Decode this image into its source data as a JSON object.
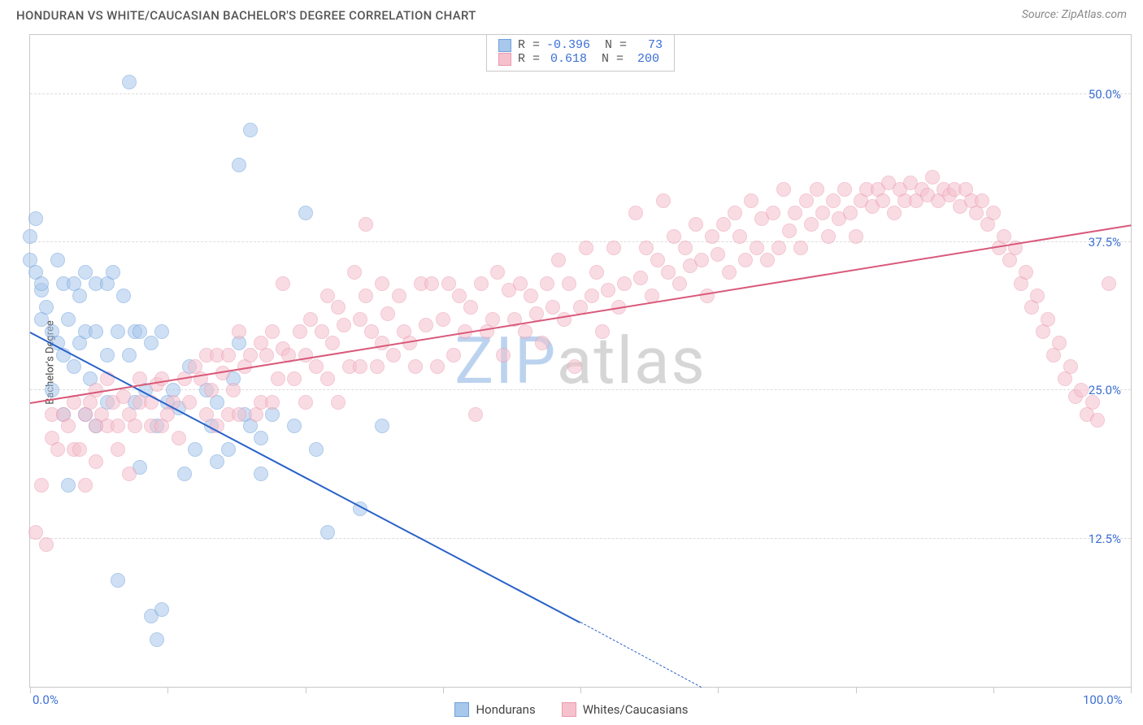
{
  "title": "HONDURAN VS WHITE/CAUCASIAN BACHELOR'S DEGREE CORRELATION CHART",
  "source": "Source: ZipAtlas.com",
  "watermark": {
    "text_a": "ZIP",
    "text_b": "atlas",
    "color_a": "#bcd3ef",
    "color_b": "#d6d6d6"
  },
  "chart": {
    "type": "scatter-with-trend",
    "ylabel": "Bachelor's Degree",
    "background_color": "#ffffff",
    "grid_color": "#dcdcdc",
    "border_color": "#c8c8c8",
    "tick_label_color": "#3b6fd6",
    "xlim": [
      0,
      100
    ],
    "ylim": [
      0,
      55
    ],
    "x_axis": {
      "tick_positions": [
        0,
        12.5,
        25,
        37.5,
        50,
        62.5,
        75,
        87.5,
        100
      ],
      "visible_labels": {
        "0": "0.0%",
        "100": "100.0%"
      }
    },
    "y_axis": {
      "gridlines": [
        12.5,
        25,
        37.5,
        50
      ],
      "labels": {
        "12.5": "12.5%",
        "25": "25.0%",
        "37.5": "37.5%",
        "50": "50.0%"
      }
    },
    "marker_radius": 9,
    "marker_opacity": 0.55,
    "series": [
      {
        "key": "hondurans",
        "label": "Hondurans",
        "marker_fill": "#a8c7ec",
        "marker_stroke": "#6ea0dd",
        "trend_color": "#2a62c9",
        "stats": {
          "R": "-0.396",
          "N": "73"
        },
        "trend": {
          "x1": 0,
          "y1": 30,
          "x2": 50,
          "y2": 5.5
        },
        "trend_dash": {
          "x1": 50,
          "y1": 5.5,
          "x2": 61,
          "y2": 0
        },
        "points": [
          [
            0,
            38
          ],
          [
            0,
            36
          ],
          [
            0.5,
            35
          ],
          [
            1,
            33.5
          ],
          [
            1,
            34
          ],
          [
            0.5,
            39.5
          ],
          [
            1,
            31
          ],
          [
            1.5,
            32
          ],
          [
            2,
            25
          ],
          [
            2,
            30
          ],
          [
            2.5,
            36
          ],
          [
            2.5,
            29
          ],
          [
            3,
            34
          ],
          [
            3,
            28
          ],
          [
            3,
            23
          ],
          [
            3.5,
            31
          ],
          [
            3.5,
            17
          ],
          [
            4,
            34
          ],
          [
            4,
            27
          ],
          [
            4.5,
            29
          ],
          [
            4.5,
            33
          ],
          [
            5,
            30
          ],
          [
            5,
            23
          ],
          [
            5,
            35
          ],
          [
            5.5,
            26
          ],
          [
            6,
            30
          ],
          [
            6,
            34
          ],
          [
            6,
            22
          ],
          [
            7,
            34
          ],
          [
            7,
            28
          ],
          [
            7,
            24
          ],
          [
            7.5,
            35
          ],
          [
            8,
            9
          ],
          [
            8,
            30
          ],
          [
            8.5,
            33
          ],
          [
            9,
            51
          ],
          [
            9,
            28
          ],
          [
            9.5,
            24
          ],
          [
            9.5,
            30
          ],
          [
            10,
            18.5
          ],
          [
            10,
            30
          ],
          [
            10.5,
            25
          ],
          [
            11,
            29
          ],
          [
            11,
            6
          ],
          [
            11.5,
            22
          ],
          [
            12,
            6.5
          ],
          [
            12,
            30
          ],
          [
            12.5,
            24
          ],
          [
            13,
            25
          ],
          [
            13.5,
            23.5
          ],
          [
            14,
            18
          ],
          [
            14.5,
            27
          ],
          [
            15,
            20
          ],
          [
            16,
            25
          ],
          [
            16.5,
            22
          ],
          [
            17,
            24
          ],
          [
            17,
            19
          ],
          [
            18,
            20
          ],
          [
            18.5,
            26
          ],
          [
            19,
            44
          ],
          [
            19,
            29
          ],
          [
            19.5,
            23
          ],
          [
            20,
            22
          ],
          [
            20,
            47
          ],
          [
            21,
            21
          ],
          [
            21,
            18
          ],
          [
            22,
            23
          ],
          [
            24,
            22
          ],
          [
            25,
            40
          ],
          [
            26,
            20
          ],
          [
            27,
            13
          ],
          [
            30,
            15
          ],
          [
            32,
            22
          ],
          [
            11.5,
            4
          ]
        ]
      },
      {
        "key": "whites",
        "label": "Whites/Caucasians",
        "marker_fill": "#f5c1cd",
        "marker_stroke": "#eb9ab0",
        "trend_color": "#d9597a",
        "stats": {
          "R": "0.618",
          "N": "200"
        },
        "trend": {
          "x1": 0,
          "y1": 24,
          "x2": 100,
          "y2": 39
        },
        "points": [
          [
            0.5,
            13
          ],
          [
            1,
            17
          ],
          [
            1.5,
            12
          ],
          [
            2,
            21
          ],
          [
            2,
            23
          ],
          [
            2.5,
            20
          ],
          [
            3,
            23
          ],
          [
            3.5,
            22
          ],
          [
            4,
            20
          ],
          [
            4,
            24
          ],
          [
            4.5,
            20
          ],
          [
            5,
            23
          ],
          [
            5,
            17
          ],
          [
            5.5,
            24
          ],
          [
            6,
            22
          ],
          [
            6,
            25
          ],
          [
            6,
            19
          ],
          [
            6.5,
            23
          ],
          [
            7,
            22
          ],
          [
            7,
            26
          ],
          [
            7.5,
            24
          ],
          [
            8,
            22
          ],
          [
            8,
            20
          ],
          [
            8.5,
            24.5
          ],
          [
            9,
            18
          ],
          [
            9,
            23
          ],
          [
            9.5,
            22
          ],
          [
            10,
            24
          ],
          [
            10,
            26
          ],
          [
            11,
            22
          ],
          [
            11,
            24
          ],
          [
            11.5,
            25.5
          ],
          [
            12,
            22
          ],
          [
            12,
            26
          ],
          [
            12.5,
            23
          ],
          [
            13,
            24
          ],
          [
            13.5,
            21
          ],
          [
            14,
            26
          ],
          [
            14.5,
            24
          ],
          [
            15,
            27
          ],
          [
            15.5,
            26
          ],
          [
            16,
            23
          ],
          [
            16,
            28
          ],
          [
            16.5,
            25
          ],
          [
            17,
            28
          ],
          [
            17,
            22
          ],
          [
            17.5,
            26.5
          ],
          [
            18,
            23
          ],
          [
            18,
            28
          ],
          [
            18.5,
            25
          ],
          [
            19,
            30
          ],
          [
            19,
            23
          ],
          [
            19.5,
            27
          ],
          [
            20,
            28
          ],
          [
            20.5,
            23
          ],
          [
            21,
            29
          ],
          [
            21,
            24
          ],
          [
            21.5,
            28
          ],
          [
            22,
            24
          ],
          [
            22,
            30
          ],
          [
            22.5,
            26
          ],
          [
            23,
            28.5
          ],
          [
            23,
            34
          ],
          [
            23.5,
            28
          ],
          [
            24,
            26
          ],
          [
            24.5,
            30
          ],
          [
            25,
            28
          ],
          [
            25,
            24
          ],
          [
            25.5,
            31
          ],
          [
            26,
            27
          ],
          [
            26.5,
            30
          ],
          [
            27,
            33
          ],
          [
            27,
            26
          ],
          [
            27.5,
            29
          ],
          [
            28,
            24
          ],
          [
            28,
            32
          ],
          [
            28.5,
            30.5
          ],
          [
            29,
            27
          ],
          [
            29.5,
            35
          ],
          [
            30,
            31
          ],
          [
            30,
            27
          ],
          [
            30.5,
            33
          ],
          [
            30.5,
            39
          ],
          [
            31,
            30
          ],
          [
            31.5,
            27
          ],
          [
            32,
            34
          ],
          [
            32,
            29
          ],
          [
            32.5,
            31.5
          ],
          [
            33,
            28
          ],
          [
            33.5,
            33
          ],
          [
            34,
            30
          ],
          [
            34.5,
            29
          ],
          [
            35,
            27
          ],
          [
            35.5,
            34
          ],
          [
            36,
            30.5
          ],
          [
            36.5,
            34
          ],
          [
            37,
            27
          ],
          [
            37.5,
            31
          ],
          [
            38,
            34
          ],
          [
            38.5,
            28
          ],
          [
            39,
            33
          ],
          [
            39.5,
            30
          ],
          [
            40,
            32
          ],
          [
            40.5,
            23
          ],
          [
            41,
            34
          ],
          [
            41.5,
            30
          ],
          [
            42,
            31
          ],
          [
            42.5,
            35
          ],
          [
            43,
            28
          ],
          [
            43.5,
            33.5
          ],
          [
            44,
            31
          ],
          [
            44.5,
            34
          ],
          [
            45,
            30
          ],
          [
            45.5,
            33
          ],
          [
            46,
            31.5
          ],
          [
            46.5,
            29
          ],
          [
            47,
            34
          ],
          [
            47.5,
            32
          ],
          [
            48,
            36
          ],
          [
            48.5,
            31
          ],
          [
            49,
            34
          ],
          [
            49.5,
            27
          ],
          [
            50,
            32
          ],
          [
            50.5,
            37
          ],
          [
            51,
            33
          ],
          [
            51.5,
            35
          ],
          [
            52,
            30
          ],
          [
            52.5,
            33.5
          ],
          [
            53,
            37
          ],
          [
            53.5,
            32
          ],
          [
            54,
            34
          ],
          [
            55,
            40
          ],
          [
            55.5,
            34.5
          ],
          [
            56,
            37
          ],
          [
            56.5,
            33
          ],
          [
            57,
            36
          ],
          [
            57.5,
            41
          ],
          [
            58,
            35
          ],
          [
            58.5,
            38
          ],
          [
            59,
            34
          ],
          [
            59.5,
            37
          ],
          [
            60,
            35.5
          ],
          [
            60.5,
            39
          ],
          [
            61,
            36
          ],
          [
            61.5,
            33
          ],
          [
            62,
            38
          ],
          [
            62.5,
            36.5
          ],
          [
            63,
            39
          ],
          [
            63.5,
            35
          ],
          [
            64,
            40
          ],
          [
            64.5,
            38
          ],
          [
            65,
            36
          ],
          [
            65.5,
            41
          ],
          [
            66,
            37
          ],
          [
            66.5,
            39.5
          ],
          [
            67,
            36
          ],
          [
            67.5,
            40
          ],
          [
            68,
            37
          ],
          [
            68.5,
            42
          ],
          [
            69,
            38.5
          ],
          [
            69.5,
            40
          ],
          [
            70,
            37
          ],
          [
            70.5,
            41
          ],
          [
            71,
            39
          ],
          [
            71.5,
            42
          ],
          [
            72,
            40
          ],
          [
            72.5,
            38
          ],
          [
            73,
            41
          ],
          [
            73.5,
            39.5
          ],
          [
            74,
            42
          ],
          [
            74.5,
            40
          ],
          [
            75,
            38
          ],
          [
            75.5,
            41
          ],
          [
            76,
            42
          ],
          [
            76.5,
            40.5
          ],
          [
            77,
            42
          ],
          [
            77.5,
            41
          ],
          [
            78,
            42.5
          ],
          [
            78.5,
            40
          ],
          [
            79,
            42
          ],
          [
            79.5,
            41
          ],
          [
            80,
            42.5
          ],
          [
            80.5,
            41
          ],
          [
            81,
            42
          ],
          [
            81.5,
            41.5
          ],
          [
            82,
            43
          ],
          [
            82.5,
            41
          ],
          [
            83,
            42
          ],
          [
            83.5,
            41.5
          ],
          [
            84,
            42
          ],
          [
            84.5,
            40.5
          ],
          [
            85,
            42
          ],
          [
            85.5,
            41
          ],
          [
            86,
            40
          ],
          [
            86.5,
            41
          ],
          [
            87,
            39
          ],
          [
            87.5,
            40
          ],
          [
            88,
            37
          ],
          [
            88.5,
            38
          ],
          [
            89,
            36
          ],
          [
            89.5,
            37
          ],
          [
            90,
            34
          ],
          [
            90.5,
            35
          ],
          [
            91,
            32
          ],
          [
            91.5,
            33
          ],
          [
            92,
            30
          ],
          [
            92.5,
            31
          ],
          [
            93,
            28
          ],
          [
            93.5,
            29
          ],
          [
            94,
            26
          ],
          [
            94.5,
            27
          ],
          [
            95,
            24.5
          ],
          [
            95.5,
            25
          ],
          [
            96,
            23
          ],
          [
            96.5,
            24
          ],
          [
            97,
            22.5
          ],
          [
            98,
            34
          ]
        ]
      }
    ]
  },
  "statbox": {
    "row_labels": {
      "R": "R =",
      "N": "N ="
    }
  },
  "bottom_legend": {
    "items": [
      {
        "label": "Hondurans",
        "fill": "#a8c7ec",
        "stroke": "#6ea0dd"
      },
      {
        "label": "Whites/Caucasians",
        "fill": "#f5c1cd",
        "stroke": "#eb9ab0"
      }
    ]
  }
}
